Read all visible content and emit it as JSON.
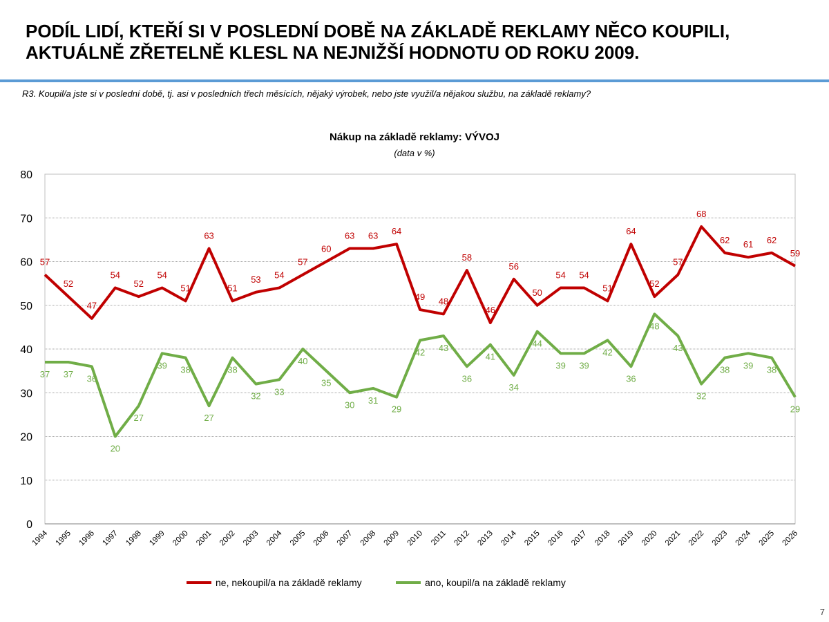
{
  "header": {
    "title_line1": "PODÍL LIDÍ, KTEŘÍ SI V POSLEDNÍ DOBĚ NA ZÁKLADĚ REKLAMY NĚCO KOUPILI,",
    "title_line2": "AKTUÁLNĚ ZŘETELNĚ KLESL NA NEJNIŽŠÍ HODNOTU OD ROKU 2009.",
    "question": "R3. Koupil/a jste si v poslední době, tj. asi v posledních třech měsících, nějaký výrobek, nebo jste využil/a nějakou službu, na základě reklamy?"
  },
  "page_number": "7",
  "chart_data": {
    "type": "line",
    "title": "Nákup na základě reklamy: VÝVOJ",
    "subtitle": "(data v %)",
    "xlabel": "",
    "ylabel": "",
    "ylim": [
      0,
      80
    ],
    "yticks": [
      "0",
      "10",
      "20",
      "30",
      "40",
      "50",
      "60",
      "70",
      "80"
    ],
    "grid": true,
    "legend_position": "bottom",
    "x": [
      "1994",
      "1995",
      "1996",
      "1997",
      "1998",
      "1999",
      "2000",
      "2001",
      "2002",
      "2003",
      "2004",
      "2005",
      "2006",
      "2007",
      "2008",
      "2009",
      "2010",
      "2011",
      "2012",
      "2013",
      "2014",
      "2015",
      "2016",
      "2017",
      "2018",
      "2019",
      "2020",
      "2021",
      "2022",
      "2023",
      "2024",
      "2025",
      "2026"
    ],
    "series": [
      {
        "name": "ne, nekoupil/a na základě reklamy",
        "color": "#c00000",
        "values": [
          57,
          52,
          47,
          54,
          52,
          54,
          51,
          63,
          51,
          53,
          54,
          57,
          60,
          63,
          63,
          64,
          49,
          48,
          58,
          46,
          56,
          50,
          54,
          54,
          51,
          64,
          52,
          57,
          68,
          62,
          61,
          62,
          59
        ]
      },
      {
        "name": "ano, koupil/a na základě reklamy",
        "color": "#70ad47",
        "values": [
          37,
          37,
          36,
          20,
          27,
          39,
          38,
          27,
          38,
          32,
          33,
          40,
          35,
          30,
          31,
          29,
          42,
          43,
          36,
          41,
          34,
          44,
          39,
          39,
          42,
          36,
          48,
          43,
          32,
          38,
          39,
          38,
          29
        ]
      }
    ]
  }
}
